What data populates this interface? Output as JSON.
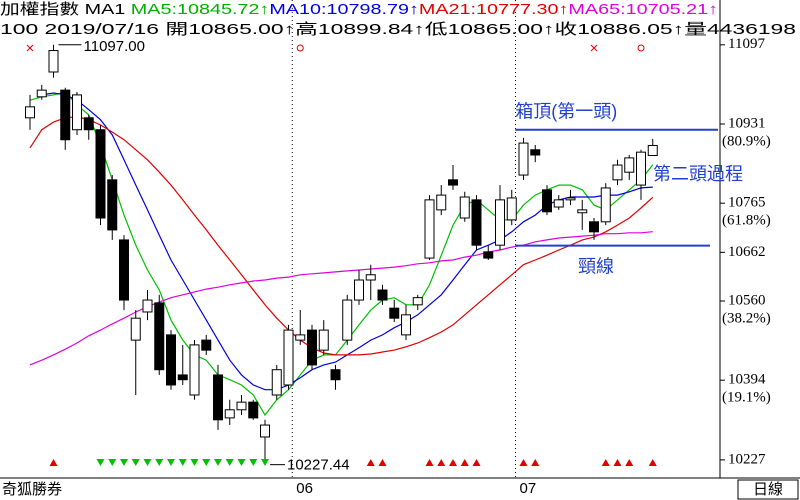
{
  "chart_data": {
    "type": "candlestick",
    "header_lines": [
      [
        {
          "text": "加權指數 MA1 ",
          "color": "#000000"
        },
        {
          "text": "MA5:10845.72↑",
          "color": "#00b000"
        },
        {
          "text": "MA10:10798.79↑",
          "color": "#0000e0"
        },
        {
          "text": "MA21:10777.30↑",
          "color": "#e00000"
        },
        {
          "text": "MA65:10705.21↑",
          "color": "#e000e0"
        }
      ],
      [
        {
          "text": "100 2019/07/16 開10865.00↑高10899.84↑低10865.00↑收10886.05↑量4436198",
          "color": "#000000"
        }
      ]
    ],
    "categories": [
      null,
      null,
      null,
      null,
      null,
      null,
      null,
      null,
      null,
      null,
      null,
      null,
      null,
      null,
      null,
      null,
      null,
      null,
      null,
      null,
      null,
      null,
      null,
      "06",
      null,
      null,
      null,
      null,
      null,
      null,
      null,
      null,
      null,
      null,
      null,
      null,
      null,
      null,
      null,
      null,
      null,
      null,
      "07",
      null,
      null,
      null,
      null,
      null,
      null,
      null,
      null,
      null,
      null,
      null
    ],
    "open": [
      10944,
      10988,
      11040,
      11002,
      10919,
      10944,
      10919,
      10814,
      10688,
      10478,
      10537,
      10556,
      10489,
      10405,
      10363,
      10478,
      10405,
      10315,
      10332,
      10348,
      10275,
      10363,
      10384,
      10478,
      10499,
      10457,
      10416,
      10478,
      10562,
      10604,
      10583,
      10545,
      10489,
      10552,
      10650,
      10751,
      10814,
      10734,
      10772,
      10663,
      10677,
      10730,
      10824,
      10877,
      10793,
      10757,
      10772,
      10745,
      10726,
      10726,
      10814,
      10830,
      10803,
      10865
    ],
    "high": [
      10992,
      11013,
      11097,
      11007,
      10998,
      10950,
      10929,
      10824,
      10698,
      10541,
      10583,
      10573,
      10499,
      10468,
      10478,
      10489,
      10426,
      10353,
      10363,
      10353,
      10311,
      10426,
      10510,
      10541,
      10510,
      10520,
      10426,
      10573,
      10625,
      10636,
      10594,
      10562,
      10552,
      10573,
      10782,
      10803,
      10845,
      10789,
      10782,
      10677,
      10803,
      10793,
      10902,
      10887,
      10803,
      10782,
      10793,
      10772,
      10734,
      10807,
      10856,
      10866,
      10877,
      10899.84
    ],
    "low": [
      10919,
      10982,
      11028,
      10877,
      10908,
      10898,
      10719,
      10688,
      10541,
      10363,
      10520,
      10405,
      10374,
      10384,
      10353,
      10447,
      10290,
      10300,
      10321,
      10311,
      10227.44,
      10353,
      10374,
      10468,
      10416,
      10447,
      10374,
      10468,
      10552,
      10562,
      10552,
      10516,
      10478,
      10541,
      10646,
      10740,
      10793,
      10726,
      10667,
      10646,
      10667,
      10719,
      10814,
      10851,
      10740,
      10751,
      10761,
      10709,
      10688,
      10719,
      10803,
      10814,
      10772,
      10865
    ],
    "close": [
      10967,
      11002,
      11085,
      10898,
      10992,
      10919,
      10734,
      10709,
      10562,
      10524,
      10562,
      10416,
      10384,
      10395,
      10468,
      10457,
      10311,
      10332,
      10348,
      10315,
      10300,
      10416,
      10499,
      10489,
      10426,
      10499,
      10395,
      10562,
      10604,
      10615,
      10562,
      10524,
      10531,
      10567,
      10772,
      10782,
      10803,
      10778,
      10677,
      10650,
      10772,
      10776,
      10891,
      10866,
      10747,
      10772,
      10776,
      10751,
      10705,
      10797,
      10845,
      10860,
      10872,
      10886.05
    ],
    "up_color": "#ffffff",
    "down_color": "#000000",
    "series": [
      {
        "color": "#00c000",
        "values": [
          10981,
          10988,
          10992,
          10998,
          10971,
          10950,
          10887,
          10814,
          10740,
          10677,
          10625,
          10583,
          10520,
          10478,
          10447,
          10436,
          10405,
          10395,
          10384,
          10363,
          10321,
          10353,
          10374,
          10405,
          10436,
          10447,
          10447,
          10478,
          10510,
          10541,
          10562,
          10567,
          10552,
          10552,
          10594,
          10656,
          10719,
          10761,
          10772,
          10751,
          10730,
          10730,
          10761,
          10782,
          10793,
          10803,
          10803,
          10793,
          10761,
          10751,
          10772,
          10793,
          10814,
          10845.72
        ]
      },
      {
        "color": "#0000e0",
        "values": [
          null,
          10992,
          10996,
          10992,
          10981,
          10961,
          10940,
          10908,
          10856,
          10803,
          10751,
          10698,
          10646,
          10604,
          10562,
          10520,
          10478,
          10436,
          10405,
          10384,
          10374,
          10374,
          10384,
          10399,
          10416,
          10426,
          10432,
          10447,
          10462,
          10478,
          10489,
          10504,
          10516,
          10531,
          10552,
          10573,
          10604,
          10636,
          10667,
          10677,
          10688,
          10705,
          10726,
          10740,
          10761,
          10772,
          10778,
          10778,
          10778,
          10782,
          10782,
          10789,
          10797,
          10798.79
        ]
      },
      {
        "color": "#e00000",
        "values": [
          10881,
          10919,
          10935,
          10944,
          10946,
          10940,
          10929,
          10914,
          10898,
          10877,
          10856,
          10830,
          10803,
          10772,
          10740,
          10709,
          10677,
          10646,
          10615,
          10583,
          10552,
          10524,
          10499,
          10478,
          10462,
          10451,
          10447,
          10447,
          10447,
          10449,
          10453,
          10457,
          10464,
          10472,
          10483,
          10495,
          10510,
          10531,
          10552,
          10573,
          10594,
          10615,
          10636,
          10646,
          10656,
          10667,
          10677,
          10688,
          10694,
          10705,
          10719,
          10734,
          10755,
          10777.3
        ]
      },
      {
        "color": "#e000e0",
        "values": [
          10426,
          10436,
          10447,
          10459,
          10472,
          10487,
          10499,
          10512,
          10524,
          10537,
          10548,
          10558,
          10567,
          10573,
          10579,
          10585,
          10589,
          10594,
          10598,
          10602,
          10604,
          10608,
          10610,
          10615,
          10617,
          10619,
          10621,
          10623,
          10625,
          10627,
          10629,
          10631,
          10634,
          10638,
          10640,
          10644,
          10646,
          10652,
          10656,
          10663,
          10667,
          10673,
          10677,
          10684,
          10688,
          10692,
          10694,
          10696,
          10698,
          10701,
          10701,
          10703,
          10703,
          10705.21
        ]
      }
    ],
    "ylim": [
      10189,
      11149
    ],
    "yticks": [
      11097,
      10931,
      10765,
      10662,
      10560,
      10394,
      10227
    ],
    "retracement_labels": [
      {
        "value": 10931,
        "label": "(80.9%)"
      },
      {
        "value": 10765,
        "label": "(61.8%)"
      },
      {
        "value": 10560,
        "label": "(38.2%)"
      },
      {
        "value": 10394,
        "label": "(19.1%)"
      }
    ],
    "high_label": "11097.00",
    "low_label": "10227.44",
    "annotations": [
      {
        "text": "箱頂(第一頭)",
        "value": 10919
      },
      {
        "text": "頸線",
        "value": 10676
      },
      {
        "text": "第二頭過程"
      }
    ],
    "annotation_color": "#2040d0",
    "up_signals": [
      2,
      29,
      30,
      34,
      35,
      36,
      37,
      38,
      42,
      43,
      49,
      50,
      51,
      53
    ],
    "down_signals": [
      6,
      7,
      8,
      9,
      10,
      11,
      12,
      13,
      14,
      15,
      16,
      17,
      18,
      19,
      20
    ],
    "x_marks": [
      0,
      48
    ],
    "o_marks": [
      23,
      52
    ],
    "footer_left": "奇狐勝券",
    "footer_right": "日線"
  }
}
